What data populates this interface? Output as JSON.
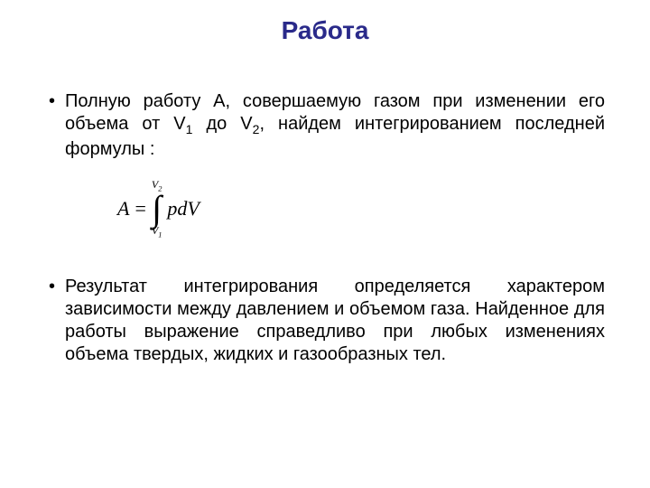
{
  "title_color": "#2a2a8a",
  "text_color": "#000000",
  "title": "Работа",
  "bullet1_pre": "Полную работу А, совершаемую газом при изменении его объема от V",
  "bullet1_sub1": "1",
  "bullet1_mid": " до V",
  "bullet1_sub2": "2",
  "bullet1_post": ", найдем интегрированием последней формулы :",
  "formula": {
    "lhs": "A",
    "eq": "=",
    "upper_limit": "V",
    "upper_sub": "2",
    "lower_limit": "V",
    "lower_sub": "1",
    "integrand": "pdV"
  },
  "bullet2": "Результат интегрирования определяется характером зависимости между давлением и объемом газа. Найденное для работы выражение справедливо при любых изменениях объема твердых, жидких и газообразных тел."
}
